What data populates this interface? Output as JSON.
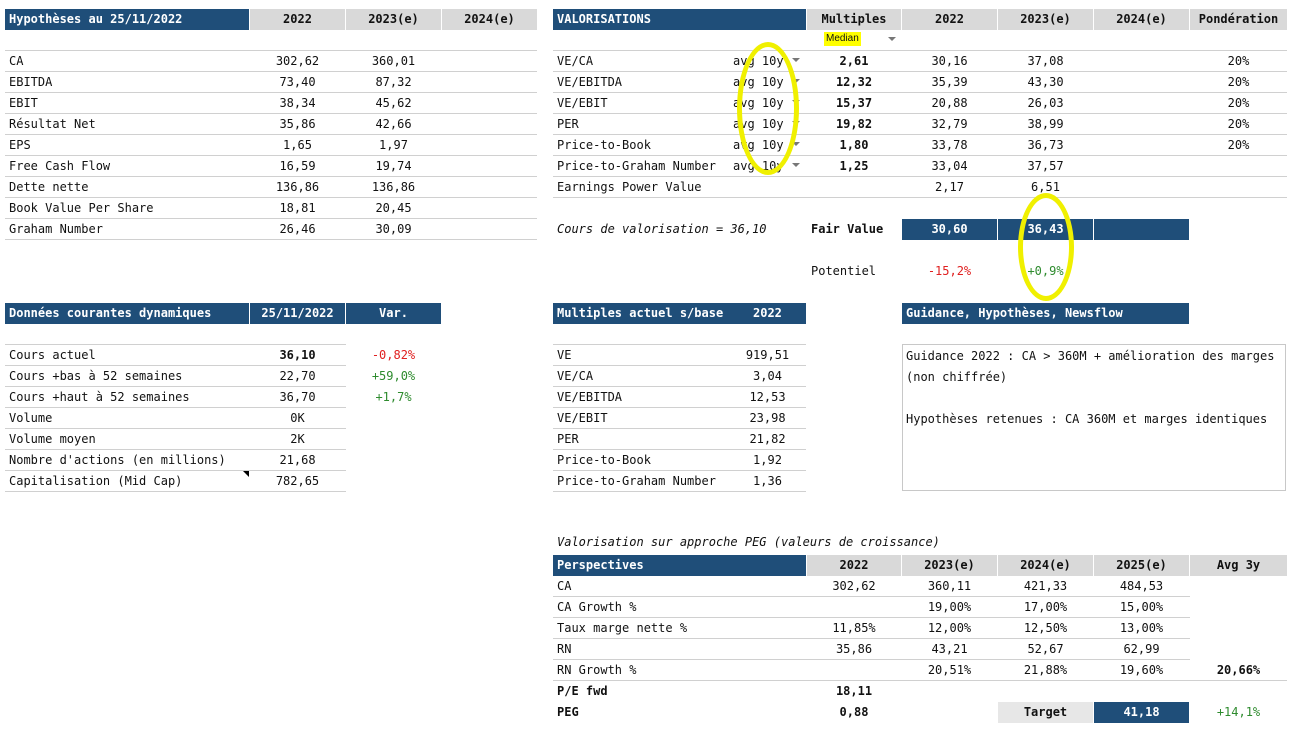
{
  "hyp": {
    "title": "Hypothèses au 25/11/2022",
    "cols": [
      "2022",
      "2023(e)",
      "2024(e)"
    ],
    "rows": [
      {
        "label": "CA",
        "v2022": "302,62",
        "v2023": "360,01"
      },
      {
        "label": "EBITDA",
        "v2022": "73,40",
        "v2023": "87,32"
      },
      {
        "label": "EBIT",
        "v2022": "38,34",
        "v2023": "45,62"
      },
      {
        "label": "Résultat Net",
        "v2022": "35,86",
        "v2023": "42,66"
      },
      {
        "label": "EPS",
        "v2022": "1,65",
        "v2023": "1,97"
      },
      {
        "label": "Free Cash Flow",
        "v2022": "16,59",
        "v2023": "19,74"
      },
      {
        "label": "Dette nette",
        "v2022": "136,86",
        "v2023": "136,86"
      },
      {
        "label": "Book Value Per Share",
        "v2022": "18,81",
        "v2023": "20,45"
      },
      {
        "label": "Graham Number",
        "v2022": "26,46",
        "v2023": "30,09"
      }
    ]
  },
  "valo": {
    "title": "VALORISATIONS",
    "cols": [
      "Multiples",
      "2022",
      "2023(e)",
      "2024(e)",
      "Pondération"
    ],
    "median_label": "Median",
    "rows": [
      {
        "label": "VE/CA",
        "period": "avg 10y",
        "mult": "2,61",
        "v2022": "30,16",
        "v2023": "37,08",
        "pond": "20%"
      },
      {
        "label": "VE/EBITDA",
        "period": "avg 10y",
        "mult": "12,32",
        "v2022": "35,39",
        "v2023": "43,30",
        "pond": "20%"
      },
      {
        "label": "VE/EBIT",
        "period": "avg 10y",
        "mult": "15,37",
        "v2022": "20,88",
        "v2023": "26,03",
        "pond": "20%"
      },
      {
        "label": "PER",
        "period": "avg 10y",
        "mult": "19,82",
        "v2022": "32,79",
        "v2023": "38,99",
        "pond": "20%"
      },
      {
        "label": "Price-to-Book",
        "period": "avg 10y",
        "mult": "1,80",
        "v2022": "33,78",
        "v2023": "36,73",
        "pond": "20%"
      },
      {
        "label": "Price-to-Graham Number",
        "period": "avg 10y",
        "mult": "1,25",
        "v2022": "33,04",
        "v2023": "37,57",
        "pond": ""
      },
      {
        "label": "Earnings Power Value",
        "period": "",
        "mult": "",
        "v2022": "2,17",
        "v2023": "6,51",
        "pond": ""
      }
    ],
    "cours_text": "Cours de valorisation = 36,10",
    "fair_value_label": "Fair Value",
    "fv2022": "30,60",
    "fv2023": "36,43",
    "potentiel_label": "Potentiel",
    "pot2022": "-15,2%",
    "pot2023": "+0,9%"
  },
  "dyn": {
    "title": "Données courantes dynamiques",
    "date": "25/11/2022",
    "var": "Var.",
    "rows": [
      {
        "label": "Cours actuel",
        "value": "36,10",
        "var": "-0,82%",
        "bold": true,
        "varclass": "red"
      },
      {
        "label": "Cours +bas à 52 semaines",
        "value": "22,70",
        "var": "+59,0%",
        "varclass": "green"
      },
      {
        "label": "Cours +haut à 52 semaines",
        "value": "36,70",
        "var": "+1,7%",
        "varclass": "green"
      },
      {
        "label": "Volume",
        "value": "0K",
        "var": ""
      },
      {
        "label": "Volume moyen",
        "value": "2K",
        "var": ""
      },
      {
        "label": "Nombre d'actions (en millions)",
        "value": "21,68",
        "var": ""
      },
      {
        "label": "Capitalisation (Mid Cap)",
        "value": "782,65",
        "var": ""
      }
    ]
  },
  "mult": {
    "title": "Multiples actuel s/base",
    "year": "2022",
    "rows": [
      {
        "label": "VE",
        "value": "919,51"
      },
      {
        "label": "VE/CA",
        "value": "3,04"
      },
      {
        "label": "VE/EBITDA",
        "value": "12,53"
      },
      {
        "label": "VE/EBIT",
        "value": "23,98"
      },
      {
        "label": "PER",
        "value": "21,82"
      },
      {
        "label": "Price-to-Book",
        "value": "1,92"
      },
      {
        "label": "Price-to-Graham Number",
        "value": "1,36"
      }
    ]
  },
  "guid": {
    "title": "Guidance, Hypothèses, Newsflow",
    "line1": "Guidance 2022 : CA > 360M + amélioration des marges",
    "line2": "(non chiffrée)",
    "line3": "Hypothèses retenues : CA 360M et marges identiques"
  },
  "peg": {
    "caption": "Valorisation sur approche PEG (valeurs de croissance)",
    "title": "Perspectives",
    "cols": [
      "2022",
      "2023(e)",
      "2024(e)",
      "2025(e)",
      "Avg 3y"
    ],
    "rows": [
      {
        "label": "CA",
        "v": [
          "302,62",
          "360,11",
          "421,33",
          "484,53"
        ],
        "avg": ""
      },
      {
        "label": "CA Growth %",
        "v": [
          "",
          "19,00%",
          "17,00%",
          "15,00%"
        ],
        "avg": ""
      },
      {
        "label": "Taux marge nette %",
        "v": [
          "11,85%",
          "12,00%",
          "12,50%",
          "13,00%"
        ],
        "avg": ""
      },
      {
        "label": "RN",
        "v": [
          "35,86",
          "43,21",
          "52,67",
          "62,99"
        ],
        "avg": ""
      },
      {
        "label": "RN Growth %",
        "v": [
          "",
          "20,51%",
          "21,88%",
          "19,60%"
        ],
        "avg": "20,66%"
      }
    ],
    "pe_label": "P/E fwd",
    "pe_value": "18,11",
    "peg_label": "PEG",
    "peg_value": "0,88",
    "target_label": "Target",
    "target_value": "41,18",
    "target_pct": "+14,1%"
  }
}
